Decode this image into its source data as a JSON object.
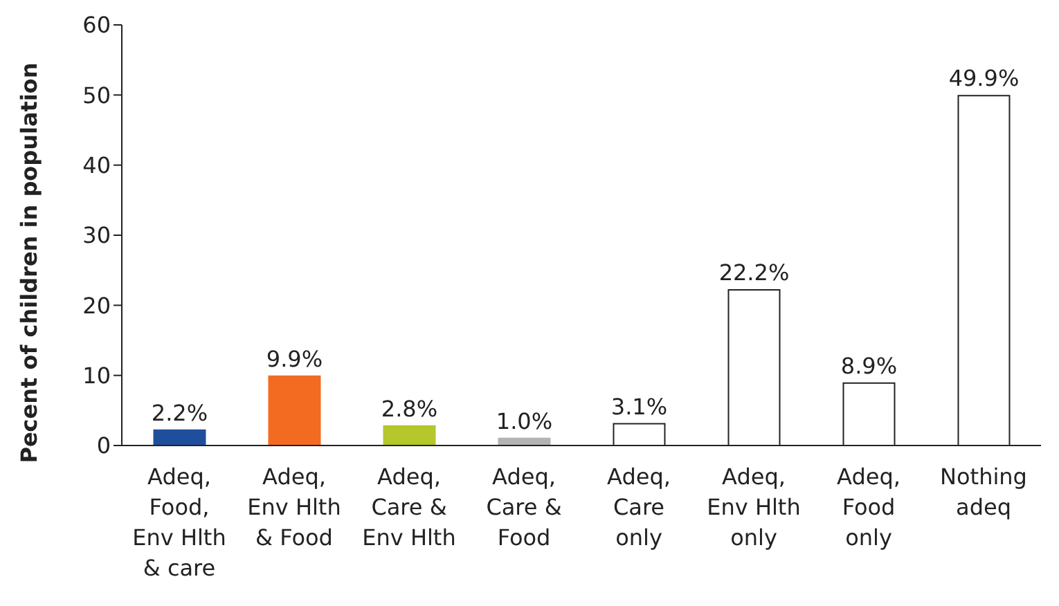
{
  "chart_data": {
    "type": "bar",
    "ylabel": "Pecent of children in population",
    "categories": [
      "Adeq, Food, Env Hlth & care",
      "Adeq, Env Hlth & Food",
      "Adeq, Care & Env Hlth",
      "Adeq, Care & Food",
      "Adeq, Care only",
      "Adeq, Env Hlth only",
      "Adeq, Food only",
      "Nothing adeq"
    ],
    "values": [
      2.2,
      9.9,
      2.8,
      1.0,
      3.1,
      22.2,
      8.9,
      49.9
    ],
    "value_labels": [
      "2.2%",
      "9.9%",
      "2.8%",
      "1.0%",
      "3.1%",
      "22.2%",
      "8.9%",
      "49.9%"
    ],
    "colors": [
      "#1f4e9c",
      "#f26b21",
      "#b5c72a",
      "#b3b3b3",
      "#ffffff",
      "#ffffff",
      "#ffffff",
      "#ffffff"
    ],
    "ylim": [
      0,
      60
    ],
    "yticks": [
      0,
      10,
      20,
      30,
      40,
      50,
      60
    ],
    "grid": false,
    "legend": false
  }
}
